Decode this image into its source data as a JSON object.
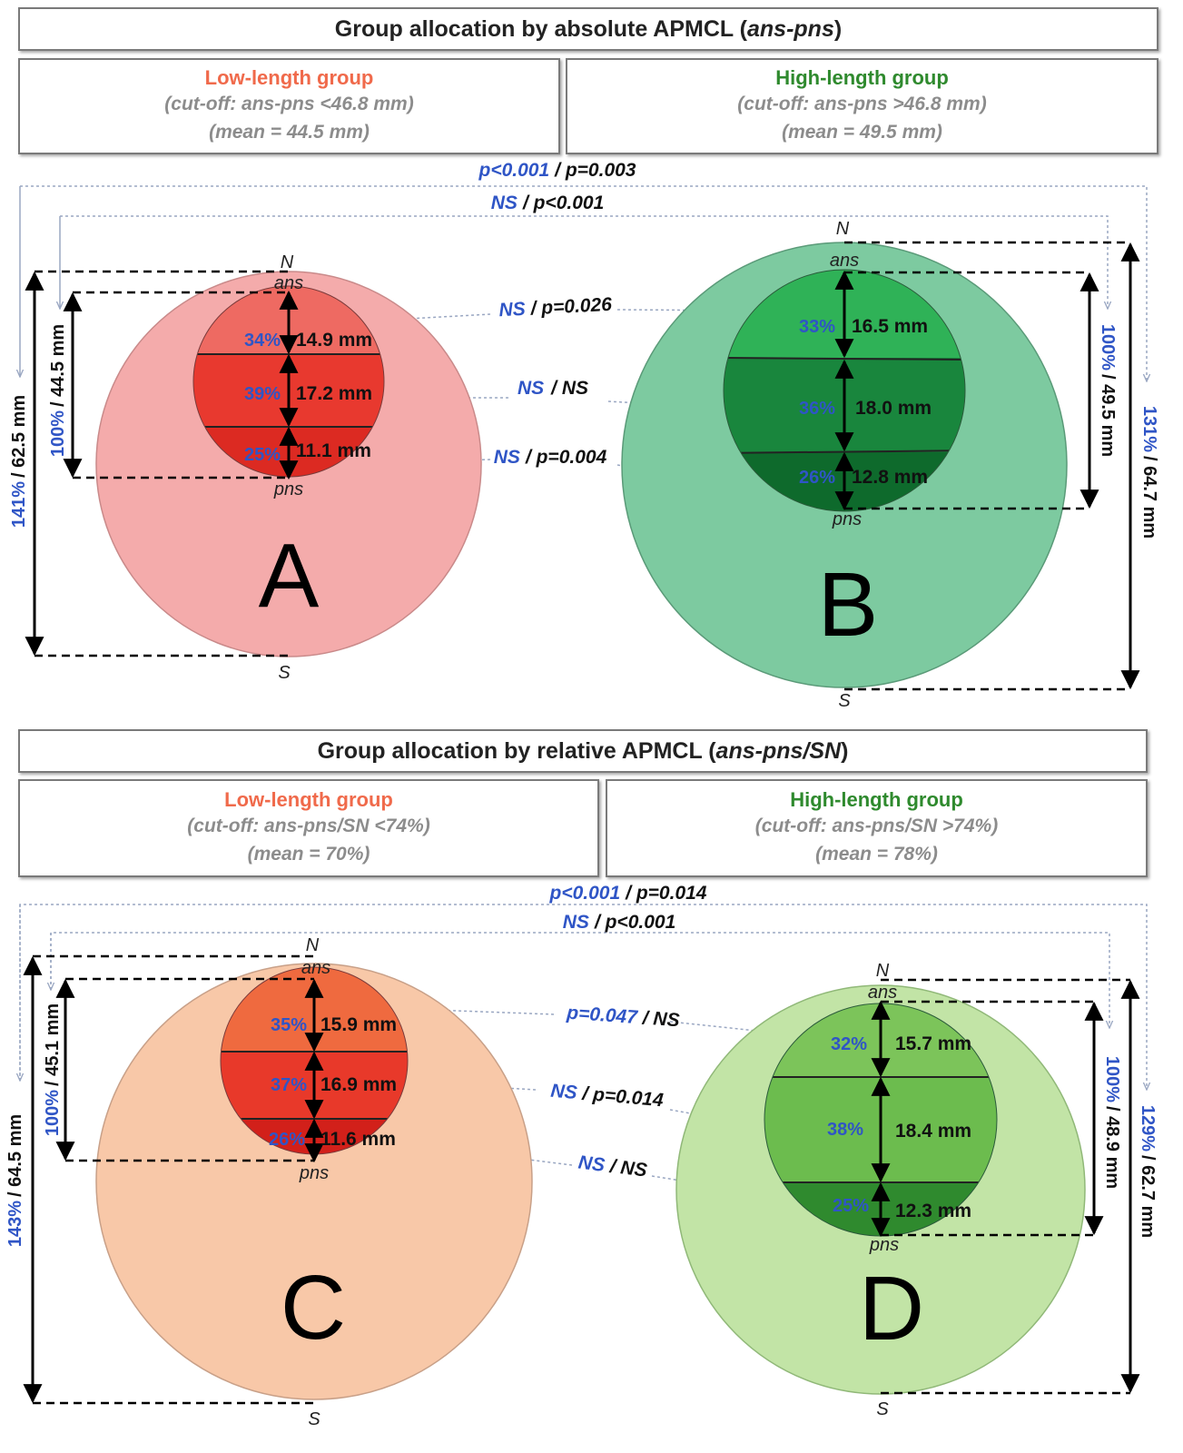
{
  "panel_top": {
    "title_pre": "Group allocation by absolute APMCL (",
    "title_var": "ans-pns",
    "title_post": ")",
    "low": {
      "name": "Low-length group",
      "cutoff": "(cut-off: ans-pns <46.8 mm)",
      "mean": "(mean = 44.5 mm)"
    },
    "high": {
      "name": "High-length group",
      "cutoff": "(cut-off: ans-pns >46.8 mm)",
      "mean": "(mean = 49.5 mm)"
    }
  },
  "panel_bottom": {
    "title_pre": "Group allocation by relative APMCL (",
    "title_var": "ans-pns/SN",
    "title_post": ")",
    "low": {
      "name": "Low-length group",
      "cutoff": "(cut-off: ans-pns/SN <74%)",
      "mean": "(mean = 70%)"
    },
    "high": {
      "name": "High-length group",
      "cutoff": "(cut-off: ans-pns/SN >74%)",
      "mean": "(mean = 78%)"
    }
  },
  "colors": {
    "low_outer_top": "#f4abab",
    "low_inner_top": [
      "#ee6a62",
      "#e8392f",
      "#dc2a22"
    ],
    "high_outer_top": "#7dcaa0",
    "high_inner_top": [
      "#2fb257",
      "#19863d",
      "#0e6a2c"
    ],
    "low_outer_bottom": "#f8c8a8",
    "low_inner_bottom": [
      "#ef6a3f",
      "#e8392a",
      "#d2201a"
    ],
    "high_outer_bottom": "#c2e4a6",
    "high_inner_bottom": [
      "#7cc45a",
      "#6cbc4e",
      "#2f8a2e"
    ],
    "low_title": "#f06a4b",
    "high_title": "#2f8a2e",
    "blue_text": "#2f55c6"
  },
  "labels": {
    "N": "N",
    "S": "S",
    "ans": "ans",
    "pns": "pns",
    "A": "A",
    "B": "B",
    "C": "C",
    "D": "D"
  },
  "circles": {
    "A": {
      "segments": [
        {
          "pct": "34%",
          "mm": "14.9 mm"
        },
        {
          "pct": "39%",
          "mm": "17.2 mm"
        },
        {
          "pct": "25%",
          "mm": "11.1 mm"
        }
      ],
      "inner": {
        "pct": "100%",
        "mm": "44.5 mm"
      },
      "outer": {
        "pct": "141%",
        "mm": "62.5 mm"
      }
    },
    "B": {
      "segments": [
        {
          "pct": "33%",
          "mm": "16.5 mm"
        },
        {
          "pct": "36%",
          "mm": "18.0 mm"
        },
        {
          "pct": "26%",
          "mm": "12.8 mm"
        }
      ],
      "inner": {
        "pct": "100%",
        "mm": "49.5 mm"
      },
      "outer": {
        "pct": "131%",
        "mm": "64.7 mm"
      }
    },
    "C": {
      "segments": [
        {
          "pct": "35%",
          "mm": "15.9 mm"
        },
        {
          "pct": "37%",
          "mm": "16.9 mm"
        },
        {
          "pct": "26%",
          "mm": "11.6 mm"
        }
      ],
      "inner": {
        "pct": "100%",
        "mm": "45.1 mm"
      },
      "outer": {
        "pct": "143%",
        "mm": "64.5 mm"
      }
    },
    "D": {
      "segments": [
        {
          "pct": "32%",
          "mm": "15.7 mm"
        },
        {
          "pct": "38%",
          "mm": "18.4 mm"
        },
        {
          "pct": "25%",
          "mm": "12.3 mm"
        }
      ],
      "inner": {
        "pct": "100%",
        "mm": "48.9 mm"
      },
      "outer": {
        "pct": "129%",
        "mm": "62.7 mm"
      }
    }
  },
  "comparisons_top": {
    "outer": {
      "blue": "p<0.001",
      "black": "/ p=0.003"
    },
    "inner": {
      "blue": "NS",
      "black": "/ p<0.001"
    },
    "seg1": {
      "blue": "NS",
      "black": "/ p=0.026"
    },
    "seg2": {
      "blue": "NS",
      "black": "/ NS"
    },
    "seg3": {
      "blue": "NS",
      "black": "/ p=0.004"
    }
  },
  "comparisons_bottom": {
    "outer": {
      "blue": "p<0.001",
      "black": "/ p=0.014"
    },
    "inner": {
      "blue": "NS",
      "black": "/ p<0.001"
    },
    "seg1": {
      "blue": "p=0.047",
      "black": "/ NS"
    },
    "seg2": {
      "blue": "NS",
      "black": "/ p=0.014"
    },
    "seg3": {
      "blue": "NS",
      "black": "/ NS"
    }
  }
}
